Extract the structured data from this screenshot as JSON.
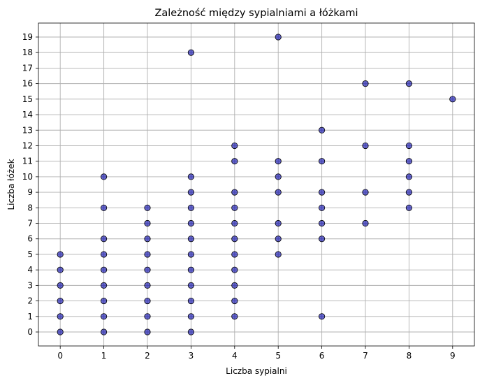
{
  "chart_data": {
    "type": "scatter",
    "title": "Zależność między sypialniami a łóżkami",
    "xlabel": "Liczba sypialni",
    "ylabel": "Liczba łóżek",
    "xlim": [
      -0.5,
      9.5
    ],
    "ylim": [
      -0.9,
      19.9
    ],
    "xticks": [
      "0",
      "1",
      "2",
      "3",
      "4",
      "5",
      "6",
      "7",
      "8",
      "9"
    ],
    "yticks": [
      "0",
      "1",
      "2",
      "3",
      "4",
      "5",
      "6",
      "7",
      "8",
      "9",
      "10",
      "11",
      "12",
      "13",
      "14",
      "15",
      "16",
      "17",
      "18",
      "19"
    ],
    "grid": true,
    "point_color": "#0000aa",
    "point_opacity": 0.6,
    "points": [
      {
        "x": 0,
        "y": 0
      },
      {
        "x": 0,
        "y": 1
      },
      {
        "x": 0,
        "y": 2
      },
      {
        "x": 0,
        "y": 3
      },
      {
        "x": 0,
        "y": 4
      },
      {
        "x": 0,
        "y": 5
      },
      {
        "x": 1,
        "y": 0
      },
      {
        "x": 1,
        "y": 1
      },
      {
        "x": 1,
        "y": 2
      },
      {
        "x": 1,
        "y": 3
      },
      {
        "x": 1,
        "y": 4
      },
      {
        "x": 1,
        "y": 5
      },
      {
        "x": 1,
        "y": 6
      },
      {
        "x": 1,
        "y": 8
      },
      {
        "x": 1,
        "y": 10
      },
      {
        "x": 2,
        "y": 0
      },
      {
        "x": 2,
        "y": 1
      },
      {
        "x": 2,
        "y": 2
      },
      {
        "x": 2,
        "y": 3
      },
      {
        "x": 2,
        "y": 4
      },
      {
        "x": 2,
        "y": 5
      },
      {
        "x": 2,
        "y": 6
      },
      {
        "x": 2,
        "y": 7
      },
      {
        "x": 2,
        "y": 8
      },
      {
        "x": 3,
        "y": 0
      },
      {
        "x": 3,
        "y": 1
      },
      {
        "x": 3,
        "y": 2
      },
      {
        "x": 3,
        "y": 3
      },
      {
        "x": 3,
        "y": 4
      },
      {
        "x": 3,
        "y": 5
      },
      {
        "x": 3,
        "y": 6
      },
      {
        "x": 3,
        "y": 7
      },
      {
        "x": 3,
        "y": 8
      },
      {
        "x": 3,
        "y": 9
      },
      {
        "x": 3,
        "y": 10
      },
      {
        "x": 3,
        "y": 18
      },
      {
        "x": 4,
        "y": 1
      },
      {
        "x": 4,
        "y": 2
      },
      {
        "x": 4,
        "y": 3
      },
      {
        "x": 4,
        "y": 4
      },
      {
        "x": 4,
        "y": 5
      },
      {
        "x": 4,
        "y": 6
      },
      {
        "x": 4,
        "y": 7
      },
      {
        "x": 4,
        "y": 8
      },
      {
        "x": 4,
        "y": 9
      },
      {
        "x": 4,
        "y": 11
      },
      {
        "x": 4,
        "y": 12
      },
      {
        "x": 5,
        "y": 5
      },
      {
        "x": 5,
        "y": 6
      },
      {
        "x": 5,
        "y": 7
      },
      {
        "x": 5,
        "y": 9
      },
      {
        "x": 5,
        "y": 10
      },
      {
        "x": 5,
        "y": 11
      },
      {
        "x": 5,
        "y": 19
      },
      {
        "x": 6,
        "y": 1
      },
      {
        "x": 6,
        "y": 6
      },
      {
        "x": 6,
        "y": 7
      },
      {
        "x": 6,
        "y": 8
      },
      {
        "x": 6,
        "y": 9
      },
      {
        "x": 6,
        "y": 11
      },
      {
        "x": 6,
        "y": 13
      },
      {
        "x": 7,
        "y": 7
      },
      {
        "x": 7,
        "y": 9
      },
      {
        "x": 7,
        "y": 12
      },
      {
        "x": 7,
        "y": 16
      },
      {
        "x": 8,
        "y": 8
      },
      {
        "x": 8,
        "y": 9
      },
      {
        "x": 8,
        "y": 10
      },
      {
        "x": 8,
        "y": 11
      },
      {
        "x": 8,
        "y": 12
      },
      {
        "x": 8,
        "y": 16
      },
      {
        "x": 9,
        "y": 15
      }
    ]
  }
}
